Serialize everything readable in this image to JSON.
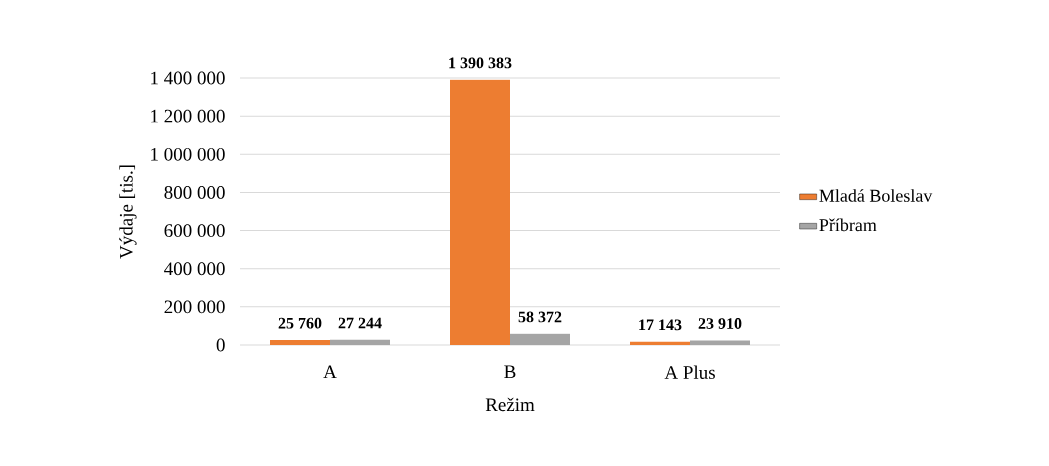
{
  "chart_data": {
    "type": "bar",
    "xlabel": "Režim",
    "ylabel": "Výdaje [tis.]",
    "categories": [
      "A",
      "B",
      "A Plus"
    ],
    "series": [
      {
        "name": "Mladá Boleslav",
        "color": "#ed7d31",
        "values": [
          25760,
          1390383,
          17143
        ],
        "value_labels": [
          "25 760",
          "1 390 383",
          "17 143"
        ]
      },
      {
        "name": "Příbram",
        "color": "#a5a5a5",
        "values": [
          27244,
          58372,
          23910
        ],
        "value_labels": [
          "27 244",
          "58 372",
          "23 910"
        ]
      }
    ],
    "ylim": [
      0,
      1400000
    ],
    "yticks": [
      {
        "value": 0,
        "label": "0"
      },
      {
        "value": 200000,
        "label": "200 000"
      },
      {
        "value": 400000,
        "label": "400 000"
      },
      {
        "value": 600000,
        "label": "600 000"
      },
      {
        "value": 800000,
        "label": "800 000"
      },
      {
        "value": 1000000,
        "label": "1 000 000"
      },
      {
        "value": 1200000,
        "label": "1 200 000"
      },
      {
        "value": 1400000,
        "label": "1 400 000"
      }
    ],
    "grid": "y",
    "legend": "right"
  }
}
